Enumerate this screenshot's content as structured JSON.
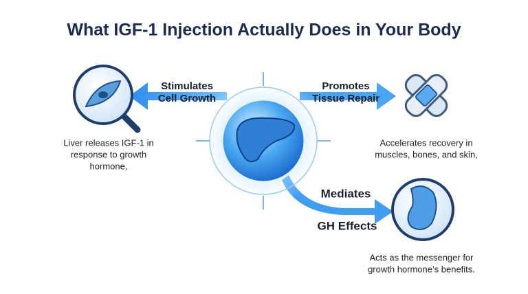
{
  "title": "What IGF-1 Injection Actually Does in Your Body",
  "nodes": [
    {
      "label": [
        "Stimulates",
        "Cell Growth"
      ],
      "description": [
        "Liver releases IGF-1 in",
        "response to growth",
        "hormone,"
      ]
    },
    {
      "label": [
        "Promotes",
        "Tissue Repair"
      ],
      "description": [
        "Accelerates recovery in",
        "muscles, bones, and skin,"
      ]
    },
    {
      "label": [
        "Mediates",
        "GH Effects"
      ],
      "description": [
        "Acts as the messenger for",
        "growth hormone’s benefits."
      ]
    }
  ]
}
